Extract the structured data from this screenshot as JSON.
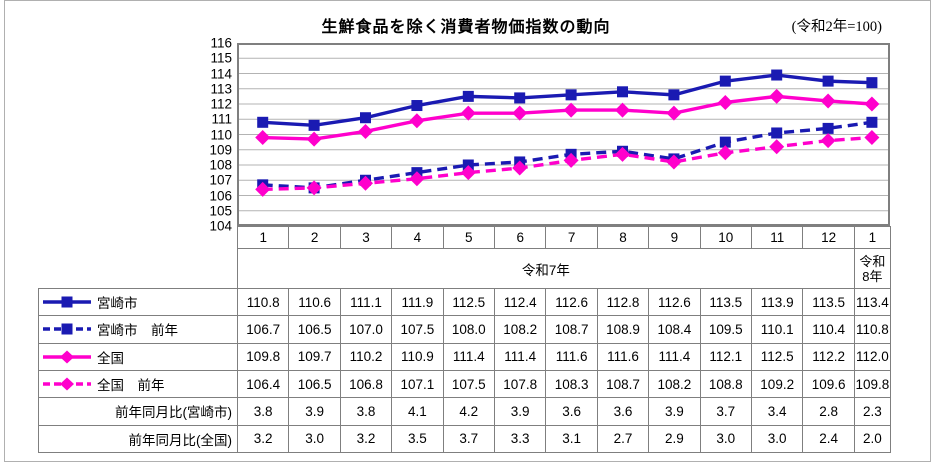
{
  "figure": {
    "title": "生鮮食品を除く消費者物価指数の動向",
    "note": "(令和2年=100)"
  },
  "chart_data": {
    "type": "line",
    "title": "生鮮食品を除く消費者物価指数の動向",
    "note": "(令和2年=100)",
    "ylim": [
      104,
      116
    ],
    "ytick_step": 1,
    "grid": true,
    "legend_position": "left-table",
    "x_tick_labels": [
      "1",
      "2",
      "3",
      "4",
      "5",
      "6",
      "7",
      "8",
      "9",
      "10",
      "11",
      "12",
      "1"
    ],
    "x_group_labels": [
      {
        "label": "令和7年",
        "cols": 12
      },
      {
        "label": "令和8年",
        "cols": 1
      }
    ],
    "series": [
      {
        "name": "宮崎市",
        "color": "#1a1ab2",
        "style": "solid",
        "marker": "square",
        "values": [
          110.8,
          110.6,
          111.1,
          111.9,
          112.5,
          112.4,
          112.6,
          112.8,
          112.6,
          113.5,
          113.9,
          113.5,
          113.4
        ]
      },
      {
        "name": "宮崎市　前年",
        "color": "#1a1ab2",
        "style": "dashed",
        "marker": "square",
        "values": [
          106.7,
          106.5,
          107.0,
          107.5,
          108.0,
          108.2,
          108.7,
          108.9,
          108.4,
          109.5,
          110.1,
          110.4,
          110.8
        ]
      },
      {
        "name": "全国",
        "color": "#ff00cc",
        "style": "solid",
        "marker": "diamond",
        "values": [
          109.8,
          109.7,
          110.2,
          110.9,
          111.4,
          111.4,
          111.6,
          111.6,
          111.4,
          112.1,
          112.5,
          112.2,
          112.0
        ]
      },
      {
        "name": "全国　前年",
        "color": "#ff00cc",
        "style": "dashed",
        "marker": "diamond",
        "values": [
          106.4,
          106.5,
          106.8,
          107.1,
          107.5,
          107.8,
          108.3,
          108.7,
          108.2,
          108.8,
          109.2,
          109.6,
          109.8
        ]
      }
    ],
    "yoy_rows": [
      {
        "name": "前年同月比(宮崎市)",
        "values": [
          3.8,
          3.9,
          3.8,
          4.1,
          4.2,
          3.9,
          3.6,
          3.6,
          3.9,
          3.7,
          3.4,
          2.8,
          2.3
        ]
      },
      {
        "name": "前年同月比(全国)",
        "values": [
          3.2,
          3.0,
          3.2,
          3.5,
          3.7,
          3.3,
          3.1,
          2.7,
          2.9,
          3.0,
          3.0,
          2.4,
          2.0
        ]
      }
    ],
    "colors": {
      "grid_line": "#b3b3b3",
      "plot_frame": "#7f7f7f",
      "table_border": "#7f7f7f"
    }
  }
}
